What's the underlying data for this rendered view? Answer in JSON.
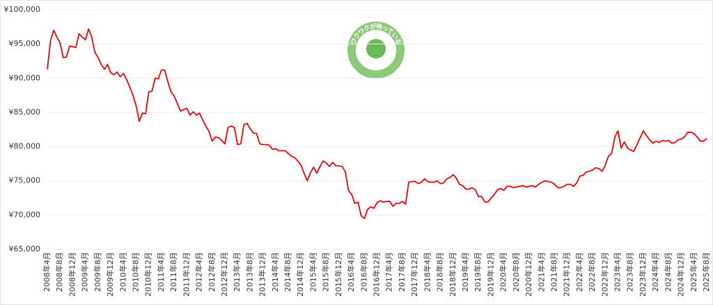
{
  "chart_data": {
    "type": "line",
    "categories": [
      "2008年4月",
      null,
      null,
      null,
      "2008年8月",
      null,
      null,
      null,
      "2008年12月",
      null,
      null,
      null,
      "2009年4月",
      null,
      null,
      null,
      "2009年8月",
      null,
      null,
      null,
      "2009年12月",
      null,
      null,
      null,
      "2010年4月",
      null,
      null,
      null,
      "2010年8月",
      null,
      null,
      null,
      "2010年12月",
      null,
      null,
      null,
      "2011年4月",
      null,
      null,
      null,
      "2011年8月",
      null,
      null,
      null,
      "2011年12月",
      null,
      null,
      null,
      "2012年4月",
      null,
      null,
      null,
      "2012年8月",
      null,
      null,
      null,
      "2012年12月",
      null,
      null,
      null,
      "2013年4月",
      null,
      null,
      null,
      "2013年8月",
      null,
      null,
      null,
      "2013年12月",
      null,
      null,
      null,
      "2014年4月",
      null,
      null,
      null,
      "2014年8月",
      null,
      null,
      null,
      "2014年12月",
      null,
      null,
      null,
      "2015年4月",
      null,
      null,
      null,
      "2015年8月",
      null,
      null,
      null,
      "2015年12月",
      null,
      null,
      null,
      "2016年4月",
      null,
      null,
      null,
      "2016年8月",
      null,
      null,
      null,
      "2016年12月",
      null,
      null,
      null,
      "2017年4月",
      null,
      null,
      null,
      "2017年8月",
      null,
      null,
      null,
      "2017年12月",
      null,
      null,
      null,
      "2018年4月",
      null,
      null,
      null,
      "2018年8月",
      null,
      null,
      null,
      "2018年12月",
      null,
      null,
      null,
      "2019年4月",
      null,
      null,
      null,
      "2019年8月",
      null,
      null,
      null,
      "2019年12月",
      null,
      null,
      null,
      "2020年4月",
      null,
      null,
      null,
      "2020年8月",
      null,
      null,
      null,
      "2020年12月",
      null,
      null,
      null,
      "2021年4月",
      null,
      null,
      null,
      "2021年8月",
      null,
      null,
      null,
      "2021年12月",
      null,
      null,
      null,
      "2022年4月",
      null,
      null,
      null,
      "2022年8月",
      null,
      null,
      null,
      "2022年12月",
      null,
      null,
      null,
      "2023年4月",
      null,
      null,
      null,
      "2023年8月",
      null,
      null,
      null,
      "2023年12月",
      null,
      null,
      null,
      "2024年4月",
      null,
      null,
      null,
      "2024年8月",
      null,
      null,
      null,
      "2024年12月",
      null,
      null,
      null,
      "2025年4月",
      null,
      null,
      null,
      "2025年8月"
    ],
    "series": [
      {
        "color": "#e8000b",
        "values": [
          91300,
          95500,
          97000,
          96000,
          95200,
          93000,
          93100,
          94700,
          94600,
          94500,
          96500,
          96000,
          95600,
          97200,
          96000,
          93800,
          93000,
          92000,
          91300,
          92000,
          90800,
          90500,
          90900,
          90200,
          90700,
          89800,
          88700,
          87500,
          86000,
          83700,
          84900,
          84800,
          88000,
          88100,
          90000,
          89900,
          91200,
          91200,
          89500,
          88000,
          87400,
          86300,
          85200,
          85400,
          85600,
          84600,
          85100,
          84600,
          84900,
          83900,
          83000,
          82200,
          80800,
          81400,
          81300,
          80900,
          80400,
          82800,
          83000,
          82800,
          80300,
          80400,
          83200,
          83400,
          82600,
          82000,
          81900,
          80400,
          80300,
          80300,
          80200,
          79600,
          79700,
          79400,
          79400,
          79400,
          79000,
          78600,
          78400,
          77900,
          77300,
          76100,
          75000,
          76200,
          77000,
          76100,
          77100,
          77900,
          77600,
          77100,
          77700,
          77200,
          77200,
          77100,
          76300,
          73600,
          73000,
          71700,
          71900,
          69900,
          69500,
          70800,
          71200,
          71000,
          71800,
          72100,
          71900,
          72000,
          72000,
          71300,
          71700,
          71700,
          72000,
          71600,
          74800,
          74900,
          74900,
          74600,
          74800,
          75300,
          74900,
          74800,
          74800,
          75000,
          74600,
          74700,
          75300,
          75500,
          75900,
          75400,
          74500,
          74300,
          73800,
          73800,
          74000,
          73700,
          72700,
          72700,
          71900,
          71900,
          72500,
          73000,
          73700,
          73900,
          73600,
          74200,
          74200,
          74000,
          74100,
          74200,
          74300,
          74100,
          74200,
          74300,
          74100,
          74500,
          74800,
          75000,
          74900,
          74800,
          74500,
          74000,
          74000,
          74200,
          74500,
          74500,
          74200,
          74700,
          75700,
          75800,
          76300,
          76400,
          76600,
          76900,
          76800,
          76400,
          77300,
          78600,
          79000,
          81400,
          82300,
          79800,
          80700,
          79800,
          79500,
          79300,
          80300,
          81300,
          82300,
          81600,
          81000,
          80500,
          80800,
          80600,
          80900,
          80800,
          80900,
          80500,
          80600,
          81000,
          81100,
          81400,
          82100,
          82100,
          81900,
          81400,
          80800,
          80800,
          81200
        ]
      }
    ],
    "ylim": [
      65000,
      100000
    ],
    "yticks": [
      {
        "value": 65000,
        "label": "¥65,000"
      },
      {
        "value": 70000,
        "label": "¥70,000"
      },
      {
        "value": 75000,
        "label": "¥75,000"
      },
      {
        "value": 80000,
        "label": "¥80,000"
      },
      {
        "value": 85000,
        "label": "¥85,000"
      },
      {
        "value": 90000,
        "label": "¥90,000"
      },
      {
        "value": 95000,
        "label": "¥95,000"
      },
      {
        "value": 100000,
        "label": "¥100,000"
      }
    ],
    "grid": true
  },
  "logo": {
    "text": "ワクワクが待っている"
  }
}
